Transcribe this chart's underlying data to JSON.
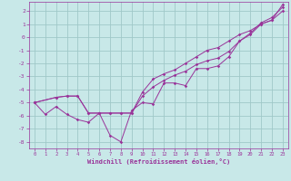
{
  "xlabel": "Windchill (Refroidissement éolien,°C)",
  "background_color": "#c8e8e8",
  "grid_color": "#a0c8c8",
  "line_color": "#993399",
  "xlim": [
    -0.5,
    23.5
  ],
  "ylim": [
    -8.5,
    2.7
  ],
  "xticks": [
    0,
    1,
    2,
    3,
    4,
    5,
    6,
    7,
    8,
    9,
    10,
    11,
    12,
    13,
    14,
    15,
    16,
    17,
    18,
    19,
    20,
    21,
    22,
    23
  ],
  "yticks": [
    -8,
    -7,
    -6,
    -5,
    -4,
    -3,
    -2,
    -1,
    0,
    1,
    2
  ],
  "series1_x": [
    0,
    1,
    2,
    3,
    4,
    5,
    6,
    7,
    8,
    9,
    10,
    11,
    12,
    13,
    14,
    15,
    16,
    17,
    18,
    19,
    20,
    21,
    22,
    23
  ],
  "series1_y": [
    -5.0,
    -5.9,
    -5.3,
    -5.9,
    -6.3,
    -6.5,
    -5.8,
    -7.5,
    -8.0,
    -5.6,
    -5.0,
    -5.1,
    -3.5,
    -3.5,
    -3.7,
    -2.4,
    -2.4,
    -2.2,
    -1.5,
    -0.3,
    0.3,
    1.1,
    1.5,
    2.3
  ],
  "series2_x": [
    0,
    2,
    3,
    4,
    5,
    6,
    7,
    8,
    9,
    10,
    11,
    12,
    13,
    14,
    15,
    16,
    17,
    18,
    19,
    20,
    21,
    22,
    23
  ],
  "series2_y": [
    -5.0,
    -4.6,
    -4.5,
    -4.5,
    -5.8,
    -5.8,
    -5.8,
    -5.8,
    -5.8,
    -4.5,
    -3.8,
    -3.3,
    -2.9,
    -2.6,
    -2.1,
    -1.8,
    -1.6,
    -1.1,
    -0.3,
    0.2,
    1.0,
    1.3,
    2.5
  ],
  "series3_x": [
    0,
    2,
    3,
    4,
    5,
    6,
    7,
    8,
    9,
    10,
    11,
    12,
    13,
    14,
    15,
    16,
    17,
    18,
    19,
    20,
    21,
    22,
    23
  ],
  "series3_y": [
    -5.0,
    -4.6,
    -4.5,
    -4.5,
    -5.8,
    -5.8,
    -5.8,
    -5.8,
    -5.8,
    -4.2,
    -3.2,
    -2.8,
    -2.5,
    -2.0,
    -1.5,
    -1.0,
    -0.8,
    -0.3,
    0.2,
    0.5,
    1.0,
    1.3,
    2.0
  ]
}
